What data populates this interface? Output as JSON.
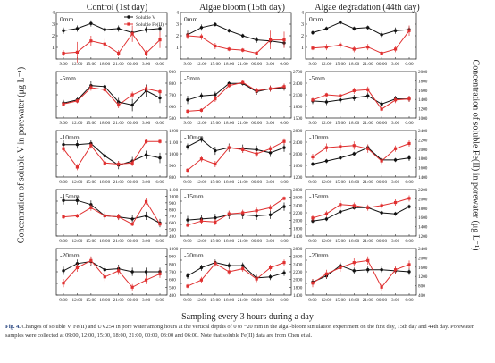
{
  "columns": [
    "Control (1st day)",
    "Algae bloom (15th day)",
    "Algae degradation (44th day)"
  ],
  "y_label_left": "Concentration of soluble V in porewater (μg L⁻¹)",
  "y_label_right": "Concentration of soluble Fe(II) in porewater (μg L⁻¹)",
  "x_label": "Sampling every 3 hours during a day",
  "caption_label": "Fig. 4.",
  "caption_text": "Changes of soluble V, Fe(II) and UV254 in pore water among hours at the vertical depths of 0 to −20 mm in the algal-bloom simulation experiment on the first day, 15th day and 44th day. Porewater samples were collected at 09:00, 12:00, 15:00, 18:00, 21:00, 00:00, 03:00 and 06:00. Note that soluble Fe(II) data are from Chen et al.",
  "legend": {
    "v": "Soluble V",
    "fe": "Soluble Fe(II)"
  },
  "colors": {
    "v": "#111111",
    "fe": "#e03030",
    "axis": "#333333"
  },
  "chart_data": {
    "type": "line",
    "x": [
      "9:00",
      "12:00",
      "15:00",
      "18:00",
      "21:00",
      "00:00",
      "3:00",
      "6:00"
    ],
    "panels": [
      {
        "col": 0,
        "row": 0,
        "depth": "0mm",
        "left_ticks": [
          "",
          "1",
          "2",
          "3",
          "4"
        ],
        "right_ticks": [
          "",
          "",
          "",
          "",
          ""
        ],
        "left_range": [
          0,
          4
        ],
        "right_range": [
          0,
          4
        ],
        "v": [
          2.5,
          2.7,
          3.2,
          2.6,
          2.7,
          2.3,
          2.6,
          2.7
        ],
        "v_err": [
          0.3,
          0.3,
          0.3,
          0.3,
          0.3,
          0.3,
          0.3,
          0.3
        ],
        "fe": [
          0.3,
          0.4,
          1.5,
          1.2,
          0.3,
          2.2,
          0.3,
          1.6
        ],
        "fe_err": [
          0.3,
          1.0,
          0.5,
          0.5,
          0.3,
          0.8,
          0.3,
          0.8
        ]
      },
      {
        "col": 1,
        "row": 0,
        "depth": "0mm",
        "left_ticks": [
          "",
          "1",
          "2",
          "3",
          "4"
        ],
        "right_ticks": [
          "",
          "",
          "",
          "",
          ""
        ],
        "left_range": [
          0,
          4
        ],
        "right_range": [
          0,
          4
        ],
        "v": [
          2.1,
          2.8,
          3.1,
          2.5,
          2.0,
          1.6,
          1.5,
          1.3
        ],
        "v_err": [
          0.4,
          0.3,
          0.2,
          0.2,
          0.2,
          0.3,
          0.3,
          0.4
        ],
        "fe": [
          2.0,
          1.9,
          1.0,
          0.7,
          0.6,
          0.3,
          1.6,
          1.6
        ],
        "fe_err": [
          0.3,
          0.3,
          0.3,
          0.2,
          0.2,
          0.2,
          0.9,
          0.8
        ]
      },
      {
        "col": 2,
        "row": 0,
        "depth": "0mm",
        "left_ticks": [
          "",
          "1",
          "2",
          "3",
          "4"
        ],
        "right_ticks": [
          "",
          "",
          "",
          "",
          ""
        ],
        "left_range": [
          0,
          4
        ],
        "right_range": [
          0,
          4
        ],
        "v": [
          2.3,
          2.7,
          3.3,
          2.7,
          2.8,
          2.1,
          2.5,
          2.6
        ],
        "v_err": [
          0.2,
          0.2,
          0.2,
          0.2,
          0.2,
          0.3,
          0.3,
          0.3
        ],
        "fe": [
          0.8,
          0.9,
          1.1,
          0.7,
          0.9,
          0.3,
          0.7,
          2.5
        ],
        "fe_err": [
          0.2,
          0.3,
          0.3,
          0.3,
          0.3,
          0.2,
          0.3,
          0.5
        ]
      },
      {
        "col": 0,
        "row": 1,
        "depth": "-5mm",
        "left_ticks": [
          "",
          "",
          "",
          "",
          ""
        ],
        "right_ticks": [
          "500",
          "600",
          "700",
          "800",
          "900"
        ],
        "left_range": [
          0,
          4
        ],
        "right_range": [
          500,
          900
        ],
        "v": [
          1.2,
          1.5,
          2.9,
          2.8,
          1.3,
          1.0,
          2.4,
          1.7
        ],
        "v_err": [
          0.3,
          0.3,
          0.4,
          0.3,
          0.4,
          0.6,
          0.6,
          0.5
        ],
        "fe": [
          1.1,
          1.4,
          2.7,
          2.5,
          1.0,
          2.0,
          2.6,
          2.3
        ],
        "fe_err": [
          0.2,
          0.2,
          0.3,
          0.3,
          0.3,
          0.3,
          0.3,
          0.3
        ]
      },
      {
        "col": 1,
        "row": 1,
        "depth": "-5mm",
        "left_ticks": [
          "",
          "",
          "",
          "",
          ""
        ],
        "right_ticks": [
          "1500",
          "1800",
          "2100",
          "2400",
          "2700"
        ],
        "left_range": [
          0,
          4
        ],
        "right_range": [
          1500,
          2700
        ],
        "v": [
          1.5,
          1.9,
          2.0,
          3.1,
          3.1,
          2.3,
          2.6,
          2.7
        ],
        "v_err": [
          0.4,
          0.3,
          0.3,
          0.2,
          0.2,
          0.3,
          0.3,
          0.3
        ],
        "fe": [
          0.4,
          0.5,
          1.6,
          2.9,
          3.2,
          2.4,
          2.6,
          2.8
        ],
        "fe_err": [
          0.2,
          0.2,
          0.3,
          0.2,
          0.2,
          0.3,
          0.3,
          0.3
        ]
      },
      {
        "col": 2,
        "row": 1,
        "depth": "-5mm",
        "left_ticks": [
          "",
          "",
          "",
          "",
          ""
        ],
        "right_ticks": [
          "1000",
          "1200",
          "1400",
          "1600",
          "1800",
          "2000"
        ],
        "left_range": [
          0,
          4
        ],
        "right_range": [
          1000,
          2000
        ],
        "v": [
          1.4,
          1.3,
          1.5,
          1.7,
          1.9,
          1.1,
          1.6,
          1.6
        ],
        "v_err": [
          0.3,
          0.3,
          0.3,
          0.3,
          0.3,
          0.3,
          0.3,
          0.3
        ],
        "fe": [
          1.5,
          2.0,
          1.9,
          2.4,
          2.5,
          0.6,
          1.5,
          1.6
        ],
        "fe_err": [
          0.2,
          0.2,
          0.2,
          0.3,
          0.3,
          0.2,
          0.3,
          0.3
        ]
      },
      {
        "col": 0,
        "row": 2,
        "depth": "-10mm",
        "left_ticks": [
          "",
          "",
          "",
          "",
          ""
        ],
        "right_ticks": [
          "800",
          "900",
          "1000",
          "1100",
          "1200"
        ],
        "left_range": [
          0,
          4
        ],
        "right_range": [
          800,
          1200
        ],
        "v": [
          2.9,
          2.9,
          3.0,
          1.8,
          0.9,
          1.3,
          1.9,
          1.6
        ],
        "v_err": [
          0.4,
          0.4,
          0.3,
          0.4,
          0.4,
          0.4,
          0.4,
          0.5
        ],
        "fe": [
          2.5,
          0.7,
          2.8,
          1.1,
          1.0,
          1.1,
          3.2,
          3.2
        ],
        "fe_err": [
          0.3,
          0.3,
          0.3,
          0.3,
          0.3,
          0.3,
          0.2,
          0.2
        ]
      },
      {
        "col": 1,
        "row": 2,
        "depth": "-10mm",
        "left_ticks": [
          "",
          "",
          "",
          "",
          ""
        ],
        "right_ticks": [
          "1200",
          "1600",
          "2000",
          "2400",
          "2800"
        ],
        "left_range": [
          0,
          4
        ],
        "right_range": [
          1200,
          2800
        ],
        "v": [
          2.7,
          3.4,
          2.3,
          2.6,
          2.5,
          2.4,
          2.1,
          2.6
        ],
        "v_err": [
          0.3,
          0.3,
          0.4,
          0.4,
          0.4,
          0.4,
          0.4,
          0.4
        ],
        "fe": [
          0.4,
          1.5,
          1.0,
          2.6,
          2.4,
          2.0,
          2.5,
          3.2
        ],
        "fe_err": [
          0.2,
          0.3,
          0.3,
          0.3,
          0.3,
          0.3,
          0.3,
          0.3
        ]
      },
      {
        "col": 2,
        "row": 2,
        "depth": "-10mm",
        "left_ticks": [
          "",
          "",
          "",
          "",
          ""
        ],
        "right_ticks": [
          "1400",
          "1600",
          "1800",
          "2000",
          "2200",
          "2400"
        ],
        "left_range": [
          0,
          4
        ],
        "right_range": [
          1400,
          2400
        ],
        "v": [
          1.0,
          1.3,
          1.6,
          2.0,
          2.6,
          1.4,
          1.4,
          1.6
        ],
        "v_err": [
          0.2,
          0.2,
          0.2,
          0.2,
          0.3,
          0.2,
          0.2,
          0.3
        ],
        "fe": [
          1.7,
          2.6,
          2.7,
          2.8,
          2.5,
          1.3,
          2.5,
          3.0
        ],
        "fe_err": [
          0.3,
          0.4,
          0.4,
          0.4,
          0.4,
          0.3,
          0.3,
          0.3
        ]
      },
      {
        "col": 0,
        "row": 3,
        "depth": "-15mm",
        "left_ticks": [
          "",
          "",
          "",
          "",
          ""
        ],
        "right_ticks": [
          "400",
          "500",
          "600",
          "700",
          "800",
          "900",
          "1000",
          "1100"
        ],
        "left_range": [
          0,
          4
        ],
        "right_range": [
          400,
          1100
        ],
        "v": [
          3.2,
          3.2,
          2.8,
          1.7,
          1.6,
          1.4,
          1.7,
          1.0
        ],
        "v_err": [
          0.4,
          0.4,
          0.4,
          0.4,
          0.3,
          0.4,
          0.4,
          0.4
        ],
        "fe": [
          1.6,
          1.7,
          2.5,
          1.7,
          1.6,
          0.9,
          3.1,
          0.9
        ],
        "fe_err": [
          0.2,
          0.2,
          0.3,
          0.3,
          0.3,
          0.2,
          0.3,
          0.2
        ]
      },
      {
        "col": 1,
        "row": 3,
        "depth": "-15mm",
        "left_ticks": [
          "",
          "",
          "",
          "",
          ""
        ],
        "right_ticks": [
          "1400",
          "1800",
          "2000",
          "2200",
          "2400",
          "2600",
          "2800"
        ],
        "left_range": [
          0,
          4
        ],
        "right_range": [
          1400,
          2800
        ],
        "v": [
          1.3,
          1.4,
          1.5,
          1.8,
          1.8,
          1.7,
          1.8,
          2.6
        ],
        "v_err": [
          0.4,
          0.4,
          0.4,
          0.4,
          0.4,
          0.4,
          0.4,
          0.4
        ],
        "fe": [
          0.8,
          1.2,
          1.1,
          1.9,
          2.0,
          2.2,
          2.5,
          3.4
        ],
        "fe_err": [
          0.2,
          0.3,
          0.3,
          0.3,
          0.3,
          0.3,
          0.3,
          0.2
        ]
      },
      {
        "col": 2,
        "row": 3,
        "depth": "-15mm",
        "left_ticks": [
          "",
          "",
          "",
          "",
          ""
        ],
        "right_ticks": [
          "1200",
          "1400",
          "1600",
          "1800",
          "2000",
          "2200"
        ],
        "left_range": [
          0,
          4
        ],
        "right_range": [
          1200,
          2200
        ],
        "v": [
          1.2,
          1.4,
          2.1,
          2.5,
          2.5,
          2.0,
          1.9,
          2.6
        ],
        "v_err": [
          0.2,
          0.2,
          0.2,
          0.2,
          0.2,
          0.2,
          0.2,
          0.2
        ],
        "fe": [
          1.5,
          1.9,
          2.8,
          2.7,
          2.5,
          2.7,
          3.0,
          3.4
        ],
        "fe_err": [
          0.3,
          0.3,
          0.4,
          0.3,
          0.3,
          0.3,
          0.3,
          0.3
        ]
      },
      {
        "col": 0,
        "row": 4,
        "depth": "-20mm",
        "left_ticks": [
          "",
          "",
          "",
          "",
          ""
        ],
        "right_ticks": [
          "400",
          "500",
          "600",
          "700",
          "800",
          "900",
          "1000"
        ],
        "left_range": [
          0,
          4
        ],
        "right_range": [
          400,
          1000
        ],
        "v": [
          2.1,
          2.8,
          3.0,
          2.2,
          2.3,
          2.0,
          2.0,
          2.0
        ],
        "v_err": [
          0.4,
          0.4,
          0.4,
          0.4,
          0.4,
          0.4,
          0.4,
          0.4
        ],
        "fe": [
          0.9,
          2.4,
          3.1,
          1.5,
          2.1,
          0.5,
          1.2,
          1.8
        ],
        "fe_err": [
          0.4,
          0.4,
          0.4,
          0.4,
          0.4,
          0.3,
          0.4,
          0.4
        ]
      },
      {
        "col": 1,
        "row": 4,
        "depth": "-20mm",
        "left_ticks": [
          "",
          "",
          "",
          "",
          ""
        ],
        "right_ticks": [
          "1400",
          "1800",
          "2000",
          "2200",
          "2400",
          "2600",
          "2800"
        ],
        "left_range": [
          0,
          4
        ],
        "right_range": [
          1400,
          2800
        ],
        "v": [
          1.6,
          2.4,
          2.9,
          2.6,
          2.6,
          1.4,
          1.5,
          1.9
        ],
        "v_err": [
          0.3,
          0.3,
          0.3,
          0.3,
          0.3,
          0.3,
          0.3,
          0.3
        ],
        "fe": [
          0.6,
          1.2,
          2.8,
          2.0,
          2.3,
          1.3,
          2.4,
          2.9
        ],
        "fe_err": [
          0.2,
          0.3,
          0.3,
          0.3,
          0.3,
          0.3,
          0.3,
          0.3
        ]
      },
      {
        "col": 2,
        "row": 4,
        "depth": "-20mm",
        "left_ticks": [
          "",
          "",
          "",
          "",
          ""
        ],
        "right_ticks": [
          "400",
          "800",
          "1200",
          "1600",
          "2000",
          "2400"
        ],
        "left_range": [
          0,
          4
        ],
        "right_range": [
          400,
          2400
        ],
        "v": [
          1.0,
          1.6,
          2.6,
          2.1,
          2.2,
          2.2,
          2.1,
          2.0
        ],
        "v_err": [
          0.3,
          0.3,
          0.3,
          0.3,
          0.3,
          0.3,
          0.3,
          0.3
        ],
        "fe": [
          0.9,
          1.8,
          2.4,
          2.9,
          3.1,
          0.5,
          2.2,
          2.7
        ],
        "fe_err": [
          0.4,
          0.4,
          0.4,
          0.4,
          0.4,
          0.3,
          0.4,
          0.4
        ]
      }
    ]
  }
}
